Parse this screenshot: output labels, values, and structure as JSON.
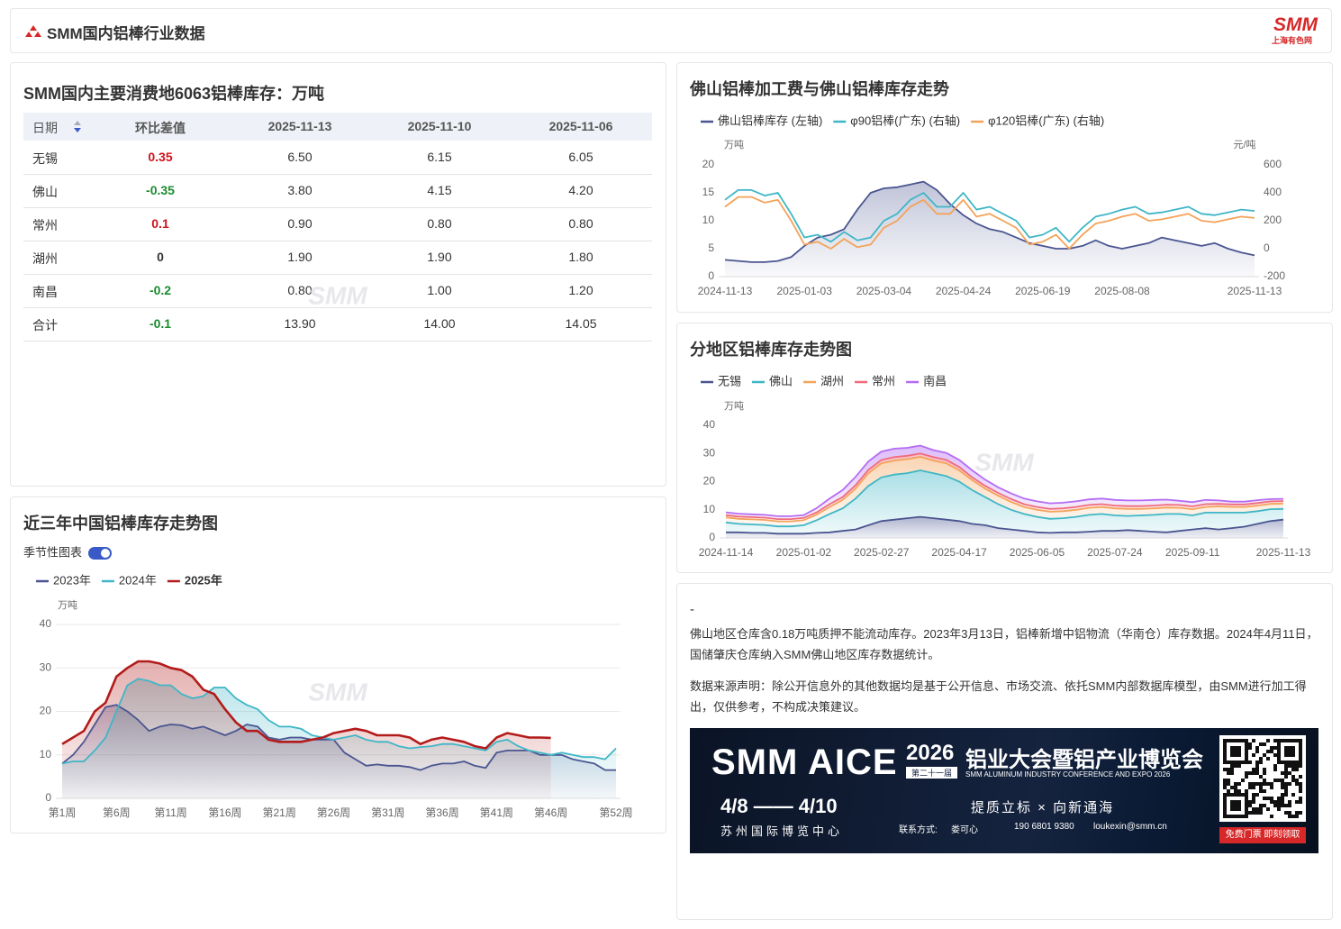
{
  "header": {
    "title": "SMM国内铝棒行业数据",
    "logo": "SMM",
    "logo_sub": "上海有色网"
  },
  "watermark": "SMM",
  "table": {
    "title": "SMM国内主要消费地6063铝棒库存：万吨",
    "columns": [
      "日期",
      "环比差值",
      "2025-11-13",
      "2025-11-10",
      "2025-11-06"
    ],
    "rows": [
      [
        "无锡",
        "0.35",
        "6.50",
        "6.15",
        "6.05"
      ],
      [
        "佛山",
        "-0.35",
        "3.80",
        "4.15",
        "4.20"
      ],
      [
        "常州",
        "0.1",
        "0.90",
        "0.80",
        "0.80"
      ],
      [
        "湖州",
        "0",
        "1.90",
        "1.90",
        "1.80"
      ],
      [
        "南昌",
        "-0.2",
        "0.80",
        "1.00",
        "1.20"
      ],
      [
        "合计",
        "-0.1",
        "13.90",
        "14.00",
        "14.05"
      ]
    ]
  },
  "chart_data": [
    {
      "type": "line",
      "title": "佛山铝棒加工费与佛山铝棒库存走势",
      "y_unit": "万吨",
      "y2_unit": "元/吨",
      "categories": [
        "2024-11-13",
        null,
        null,
        null,
        null,
        null,
        "2025-01-03",
        null,
        null,
        null,
        null,
        null,
        "2025-03-04",
        null,
        null,
        null,
        null,
        null,
        "2025-04-24",
        null,
        null,
        null,
        null,
        null,
        "2025-06-19",
        null,
        null,
        null,
        null,
        null,
        "2025-08-08",
        null,
        null,
        null,
        null,
        null,
        null,
        null,
        null,
        null,
        "2025-11-13"
      ],
      "series": [
        {
          "name": "佛山铝棒库存 (左轴)",
          "color": "#4a5590",
          "area": true,
          "values": [
            3.0,
            2.8,
            2.6,
            2.6,
            2.8,
            3.5,
            5.5,
            7.0,
            7.5,
            8.5,
            12.0,
            15.0,
            15.8,
            16.0,
            16.5,
            17.0,
            15.5,
            13.0,
            11.0,
            9.5,
            8.5,
            8.0,
            7.0,
            6.0,
            5.5,
            5.0,
            5.0,
            5.5,
            6.5,
            5.5,
            5.0,
            5.5,
            6.0,
            7.0,
            6.5,
            6.0,
            5.5,
            6.0,
            5.0,
            4.3,
            3.8
          ]
        },
        {
          "name": "φ90铝棒(广东) (右轴)",
          "color": "#3fb6c6",
          "axis": "y2",
          "values": [
            350,
            420,
            420,
            380,
            400,
            250,
            80,
            100,
            50,
            120,
            60,
            80,
            200,
            250,
            350,
            400,
            300,
            300,
            400,
            280,
            300,
            250,
            200,
            80,
            100,
            150,
            50,
            150,
            230,
            250,
            280,
            300,
            250,
            260,
            280,
            300,
            250,
            240,
            260,
            280,
            270
          ]
        },
        {
          "name": "φ120铝棒(广东) (右轴)",
          "color": "#f3a35a",
          "axis": "y2",
          "values": [
            300,
            370,
            370,
            330,
            350,
            200,
            30,
            50,
            0,
            70,
            10,
            30,
            150,
            200,
            300,
            350,
            250,
            250,
            350,
            230,
            250,
            200,
            150,
            30,
            50,
            100,
            0,
            100,
            180,
            200,
            230,
            250,
            200,
            210,
            230,
            250,
            200,
            190,
            210,
            230,
            220
          ]
        }
      ],
      "ylim": [
        0,
        20
      ],
      "yticks": [
        0,
        5,
        10,
        15,
        20
      ],
      "y2lim": [
        -200,
        600
      ],
      "y2ticks": [
        -200,
        0,
        200,
        400,
        600
      ],
      "grid": false
    },
    {
      "type": "stacked_area",
      "title": "分地区铝棒库存走势图",
      "y_unit": "万吨",
      "categories": [
        "2024-11-14",
        null,
        null,
        null,
        null,
        null,
        "2025-01-02",
        null,
        null,
        null,
        null,
        null,
        "2025-02-27",
        null,
        null,
        null,
        null,
        null,
        "2025-04-17",
        null,
        null,
        null,
        null,
        null,
        "2025-06-05",
        null,
        null,
        null,
        null,
        null,
        "2025-07-24",
        null,
        null,
        null,
        null,
        null,
        "2025-09-11",
        null,
        null,
        null,
        null,
        null,
        null,
        "2025-11-13"
      ],
      "series": [
        {
          "name": "无锡",
          "color": "#4a5590",
          "values": [
            2.0,
            2.0,
            1.8,
            1.8,
            1.5,
            1.5,
            1.5,
            1.8,
            2.0,
            2.5,
            3.0,
            4.5,
            6.0,
            6.5,
            7.0,
            7.5,
            7.0,
            6.5,
            6.0,
            5.0,
            4.5,
            3.5,
            3.0,
            2.5,
            2.0,
            1.8,
            2.0,
            2.0,
            2.2,
            2.5,
            2.5,
            2.8,
            2.5,
            2.2,
            2.0,
            2.5,
            3.0,
            3.5,
            3.0,
            3.5,
            4.0,
            5.0,
            6.0,
            6.5
          ]
        },
        {
          "name": "佛山",
          "color": "#3fb6c6",
          "values": [
            3.5,
            3.0,
            3.0,
            2.8,
            2.6,
            2.6,
            3.0,
            4.5,
            6.5,
            8.0,
            11.0,
            14.0,
            15.5,
            16.0,
            16.0,
            16.5,
            16.0,
            15.5,
            14.0,
            12.0,
            10.0,
            8.5,
            7.0,
            6.0,
            5.5,
            5.0,
            5.0,
            5.5,
            6.0,
            6.0,
            5.5,
            5.0,
            5.5,
            6.0,
            6.5,
            6.0,
            5.0,
            5.5,
            6.0,
            5.5,
            5.0,
            4.5,
            4.2,
            3.8
          ]
        },
        {
          "name": "湖州",
          "color": "#f3a35a",
          "values": [
            1.8,
            1.8,
            1.8,
            1.8,
            1.8,
            1.8,
            1.8,
            2.0,
            2.5,
            3.0,
            3.5,
            4.5,
            5.0,
            5.0,
            5.0,
            4.8,
            4.5,
            4.5,
            4.0,
            3.5,
            3.0,
            3.0,
            2.8,
            2.5,
            2.5,
            2.5,
            2.5,
            2.5,
            2.5,
            2.5,
            2.5,
            2.5,
            2.3,
            2.3,
            2.3,
            2.2,
            2.2,
            2.0,
            2.2,
            2.0,
            2.0,
            2.0,
            1.9,
            1.9
          ]
        },
        {
          "name": "常州",
          "color": "#f06b7c",
          "values": [
            0.8,
            0.8,
            0.8,
            0.8,
            0.8,
            0.8,
            0.8,
            0.8,
            1.0,
            1.0,
            1.2,
            1.2,
            1.2,
            1.2,
            1.2,
            1.2,
            1.2,
            1.2,
            1.2,
            1.0,
            1.0,
            1.0,
            1.0,
            1.0,
            1.0,
            1.0,
            1.0,
            1.0,
            1.0,
            1.0,
            1.0,
            1.0,
            1.0,
            1.0,
            1.0,
            1.0,
            1.0,
            1.0,
            0.9,
            0.9,
            0.9,
            0.9,
            0.9,
            0.9
          ]
        },
        {
          "name": "南昌",
          "color": "#b46cf2",
          "values": [
            1.0,
            1.0,
            1.0,
            1.0,
            1.0,
            1.0,
            1.0,
            1.5,
            2.0,
            2.5,
            3.0,
            3.0,
            3.0,
            3.0,
            2.8,
            2.8,
            2.5,
            2.5,
            2.5,
            2.5,
            2.2,
            2.0,
            2.0,
            2.0,
            2.0,
            2.0,
            2.0,
            2.0,
            2.0,
            2.0,
            2.0,
            2.0,
            2.0,
            2.0,
            1.8,
            1.5,
            1.5,
            1.5,
            1.2,
            1.0,
            1.0,
            1.0,
            0.8,
            0.8
          ]
        }
      ],
      "ylim": [
        0,
        40
      ],
      "yticks": [
        0,
        10,
        20,
        30,
        40
      ],
      "grid": false
    },
    {
      "type": "line",
      "title": "近三年中国铝棒库存走势图",
      "toggle_label": "季节性图表",
      "toggle_on": true,
      "y_unit": "万吨",
      "categories": [
        "第1周",
        null,
        null,
        null,
        null,
        "第6周",
        null,
        null,
        null,
        null,
        "第11周",
        null,
        null,
        null,
        null,
        "第16周",
        null,
        null,
        null,
        null,
        "第21周",
        null,
        null,
        null,
        null,
        "第26周",
        null,
        null,
        null,
        null,
        "第31周",
        null,
        null,
        null,
        null,
        "第36周",
        null,
        null,
        null,
        null,
        "第41周",
        null,
        null,
        null,
        null,
        "第46周",
        null,
        null,
        null,
        null,
        null,
        "第52周"
      ],
      "series": [
        {
          "name": "2023年",
          "color": "#4a5590",
          "area": true,
          "values": [
            8,
            10,
            13,
            17,
            21,
            21.5,
            20,
            18,
            15.5,
            16.5,
            17,
            16.8,
            16,
            16.5,
            15.5,
            14.5,
            15.5,
            17,
            16.5,
            14,
            13.5,
            14,
            14,
            13.5,
            13.5,
            13.5,
            10.5,
            9,
            7.5,
            7.8,
            7.5,
            7.5,
            7.2,
            6.5,
            7.5,
            8,
            8,
            8.5,
            7.5,
            7,
            10.5,
            11,
            11,
            11,
            10,
            10,
            10,
            9,
            8.5,
            8,
            6.5,
            6.5
          ]
        },
        {
          "name": "2024年",
          "color": "#3fb6c6",
          "area": true,
          "values": [
            8,
            8.5,
            8.5,
            11,
            14,
            20,
            26,
            27.5,
            27,
            26,
            26,
            24,
            23,
            23.5,
            25.5,
            25.5,
            23,
            21.5,
            20.5,
            18,
            16.5,
            16.5,
            16,
            14.5,
            14,
            13.5,
            14,
            14.5,
            13.5,
            13,
            13,
            12,
            11.5,
            11.8,
            12,
            12.5,
            12.5,
            12,
            11.5,
            11,
            13,
            13.5,
            12,
            11,
            10.5,
            10,
            10.5,
            10,
            9.5,
            9.5,
            9,
            11.5
          ]
        },
        {
          "name": "2025年",
          "color": "#b31b1b",
          "area": true,
          "bold": true,
          "values": [
            12.5,
            14,
            15.5,
            20,
            22,
            28,
            30,
            31.5,
            31.5,
            31,
            30,
            29.5,
            28,
            25,
            24,
            20.5,
            17.5,
            15.5,
            15.5,
            13.5,
            13,
            13,
            13,
            13.5,
            14,
            15,
            15.5,
            16,
            15.5,
            14.5,
            14.5,
            14.5,
            14,
            12.5,
            13.5,
            14,
            13.5,
            13,
            12,
            11.5,
            14,
            15,
            14.5,
            14,
            14,
            13.9,
            null,
            null,
            null,
            null,
            null,
            null
          ]
        }
      ],
      "ylim": [
        0,
        40
      ],
      "yticks": [
        0,
        10,
        20,
        30,
        40
      ],
      "grid": true
    }
  ],
  "notes": {
    "dash": "-",
    "paragraphs": [
      "佛山地区仓库含0.18万吨质押不能流动库存。2023年3月13日，铝棒新增中铝物流（华南仓）库存数据。2024年4月11日，国储肇庆仓库纳入SMM佛山地区库存数据统计。",
      "数据来源声明：除公开信息外的其他数据均是基于公开信息、市场交流、依托SMM内部数据库模型，由SMM进行加工得出，仅供参考，不构成决策建议。"
    ]
  },
  "banner": {
    "brand": "SMM AICE",
    "year": "2026",
    "edition": "第二十一届",
    "title": "铝业大会暨铝产业博览会",
    "subtitle": "SMM ALUMINUM INDUSTRY CONFERENCE AND EXPO 2026",
    "dates": "4/8 —— 4/10",
    "venue": "苏州国际博览中心",
    "slogan": "提质立标 × 向新通海",
    "contact_label": "联系方式:",
    "contact_name": "娄可心",
    "phone": "190 6801 9380",
    "email": "loukexin@smm.cn",
    "cta": "免费门票 即刻领取"
  }
}
